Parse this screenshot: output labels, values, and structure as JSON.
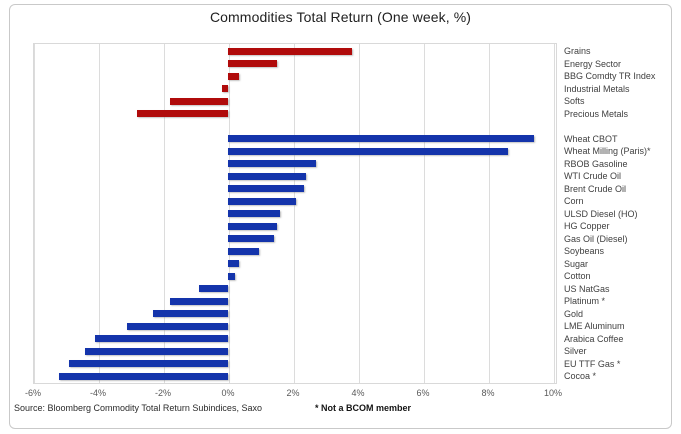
{
  "footer": {
    "source": "Source: Bloomberg Commodity Total Return Subindices, Saxo",
    "footnote": "* Not a BCOM member"
  },
  "colors": {
    "sector_bar": "#b00b0b",
    "commodity_bar": "#1434ab",
    "gridline": "#dcdcdc",
    "plot_border": "#d9d9d9"
  },
  "chart_data": {
    "type": "bar",
    "orientation": "horizontal",
    "title": "Commodities Total Return (One week, %)",
    "xlabel": "",
    "ylabel": "",
    "x_unit": "%",
    "xlim": [
      -6,
      10
    ],
    "x_tick_step": 2,
    "x_ticks": [
      "-6%",
      "-4%",
      "-2%",
      "0%",
      "2%",
      "4%",
      "6%",
      "8%",
      "10%"
    ],
    "grid": true,
    "label_position": "right",
    "groups": [
      {
        "name": "sector-indices",
        "color": "#b00b0b",
        "items": [
          {
            "label": "Grains",
            "value": 3.8
          },
          {
            "label": "Energy Sector",
            "value": 1.5
          },
          {
            "label": "BBG Comdty TR Index",
            "value": 0.35
          },
          {
            "label": "Industrial Metals",
            "value": -0.2
          },
          {
            "label": "Softs",
            "value": -1.8
          },
          {
            "label": "Precious Metals",
            "value": -2.8
          }
        ]
      },
      {
        "name": "single-commodities",
        "color": "#1434ab",
        "items": [
          {
            "label": "Wheat CBOT",
            "value": 9.4
          },
          {
            "label": "Wheat Milling (Paris)*",
            "value": 8.6
          },
          {
            "label": "RBOB Gasoline",
            "value": 2.7
          },
          {
            "label": "WTI Crude Oil",
            "value": 2.4
          },
          {
            "label": "Brent Crude Oil",
            "value": 2.35
          },
          {
            "label": "Corn",
            "value": 2.1
          },
          {
            "label": "ULSD Diesel (HO)",
            "value": 1.6
          },
          {
            "label": "HG Copper",
            "value": 1.5
          },
          {
            "label": "Gas Oil (Diesel)",
            "value": 1.4
          },
          {
            "label": "Soybeans",
            "value": 0.95
          },
          {
            "label": "Sugar",
            "value": 0.35
          },
          {
            "label": "Cotton",
            "value": 0.2
          },
          {
            "label": "US NatGas",
            "value": -0.9
          },
          {
            "label": "Platinum *",
            "value": -1.8
          },
          {
            "label": "Gold",
            "value": -2.3
          },
          {
            "label": "LME Aluminum",
            "value": -3.1
          },
          {
            "label": "Arabica Coffee",
            "value": -4.1
          },
          {
            "label": "Silver",
            "value": -4.4
          },
          {
            "label": "EU TTF Gas *",
            "value": -4.9
          },
          {
            "label": "Cocoa *",
            "value": -5.2
          }
        ]
      }
    ]
  }
}
